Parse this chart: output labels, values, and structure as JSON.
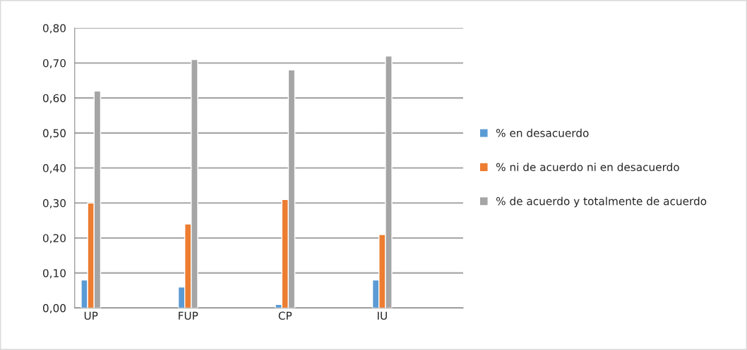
{
  "chart_data": {
    "type": "bar",
    "categories": [
      "UP",
      null,
      null,
      "FUP",
      null,
      null,
      "CP",
      null,
      null,
      "IU",
      null,
      null
    ],
    "series": [
      {
        "name": "% en desacuerdo",
        "color": "#5b9bd5",
        "values": [
          0.08,
          null,
          null,
          0.06,
          null,
          null,
          0.01,
          null,
          null,
          0.08,
          null,
          null
        ]
      },
      {
        "name": "% ni de acuerdo ni en desacuerdo",
        "color": "#ed7d31",
        "values": [
          0.3,
          null,
          null,
          0.24,
          null,
          null,
          0.31,
          null,
          null,
          0.21,
          null,
          null
        ]
      },
      {
        "name": "% de acuerdo y totalmente de acuerdo",
        "color": "#a5a5a5",
        "values": [
          0.62,
          null,
          null,
          0.71,
          null,
          null,
          0.68,
          null,
          null,
          0.72,
          null,
          null
        ]
      }
    ],
    "ylim": [
      0,
      0.8
    ],
    "yticks": [
      {
        "value": 0,
        "label": "0,00"
      },
      {
        "value": 0.1,
        "label": "0,10"
      },
      {
        "value": 0.2,
        "label": "0,20"
      },
      {
        "value": 0.3,
        "label": "0,30"
      },
      {
        "value": 0.4,
        "label": "0,40"
      },
      {
        "value": 0.5,
        "label": "0,50"
      },
      {
        "value": 0.6,
        "label": "0,60"
      },
      {
        "value": 0.7,
        "label": "0,70"
      },
      {
        "value": 0.8,
        "label": "0,80"
      }
    ],
    "grid": "y",
    "legend": "right"
  }
}
